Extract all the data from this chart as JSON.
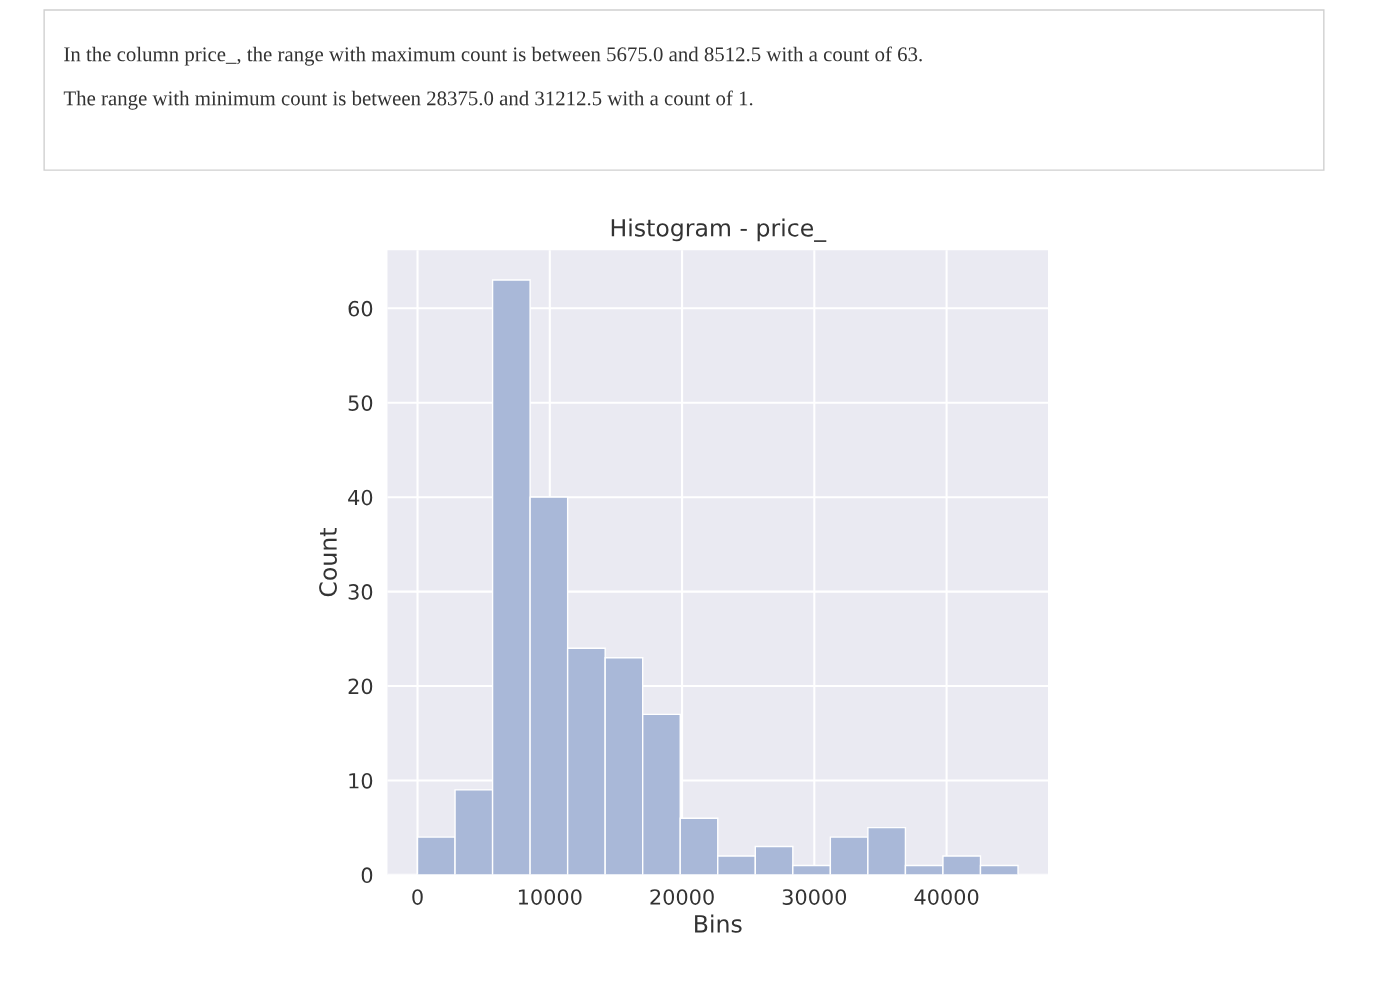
{
  "chart_data": {
    "type": "histogram",
    "title": "Histogram - price_",
    "xlabel": "Bins",
    "ylabel": "Count",
    "annotations": [
      "In the column price_, the range with maximum count is between 5675.0 and 8512.5 with a count of 63.",
      "The range with minimum count is between 28375.0 and 31212.5 with a count of 1."
    ],
    "bins": [
      0,
      2837.5,
      5675,
      8512.5,
      11350,
      14187.5,
      17025,
      19862.5,
      22700,
      25537.5,
      28375,
      31212.5,
      34050,
      36887.5,
      39725,
      42562.5,
      45400
    ],
    "values": [
      4,
      9,
      63,
      40,
      24,
      23,
      17,
      6,
      2,
      3,
      1,
      4,
      5,
      1,
      2,
      1
    ],
    "color": "#a9b8d8",
    "xlim": [
      -2270,
      47670
    ],
    "ylim": [
      0,
      66.15
    ],
    "xticks": [
      0,
      10000,
      20000,
      30000,
      40000
    ],
    "yticks": [
      0,
      10,
      20,
      30,
      40,
      50,
      60
    ],
    "grid": true
  }
}
